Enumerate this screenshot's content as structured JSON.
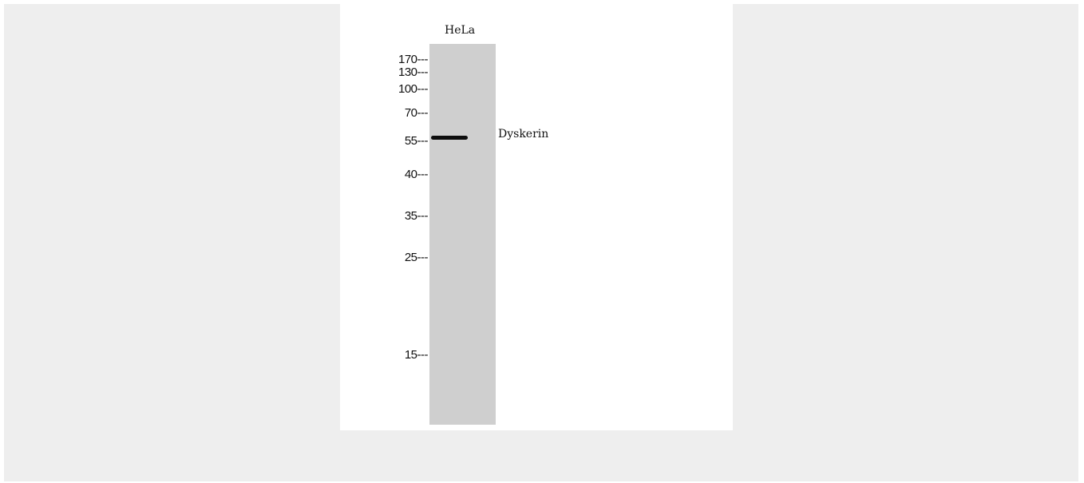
{
  "lane_label": "HeLa",
  "band_label": "Dyskerin",
  "markers": {
    "m170": "170---",
    "m130": "130---",
    "m100": "100---",
    "m70": "70---",
    "m55": "55---",
    "m40": "40---",
    "m35": "35---",
    "m25": "25---",
    "m15": "15---"
  },
  "colors": {
    "outer_background": "#eeeeee",
    "panel_background": "#ffffff",
    "lane": "#cfcfcf",
    "band": "#0e0e0e"
  }
}
